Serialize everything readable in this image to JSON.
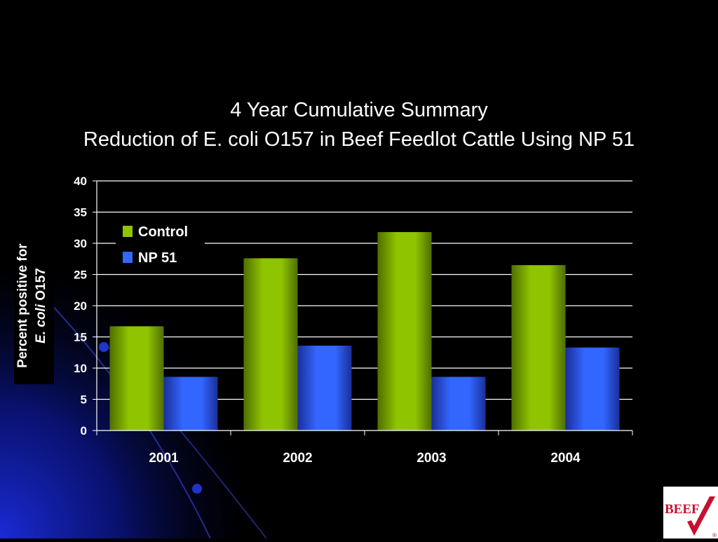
{
  "colors": {
    "background": "#000000",
    "control": "#8fc400",
    "np51": "#3366ff",
    "gridline": "#ffffff",
    "text": "#ffffff",
    "logo_red": "#c8102e"
  },
  "icons": {
    "logo": "beef-checkmark-logo"
  },
  "logo": {
    "text": "BEEF",
    "mark": "®"
  },
  "chart_data": {
    "type": "bar",
    "title": "4 Year Cumulative Summary",
    "subtitle": "Reduction of E. coli O157 in Beef Feedlot Cattle Using NP 51",
    "ylabel_line1": "Percent positive for",
    "ylabel_line2_italic": "E. coli",
    "ylabel_line2_rest": " O157",
    "categories": [
      "2001",
      "2002",
      "2003",
      "2004"
    ],
    "series": [
      {
        "name": "Control",
        "values": [
          16.7,
          27.6,
          31.8,
          26.5
        ]
      },
      {
        "name": "NP 51",
        "values": [
          8.6,
          13.6,
          8.6,
          13.3
        ]
      }
    ],
    "ylim": [
      0,
      40
    ],
    "yticks": [
      "0",
      "5",
      "10",
      "15",
      "20",
      "25",
      "30",
      "35",
      "40"
    ],
    "grid": true,
    "legend_position": "top-left"
  }
}
